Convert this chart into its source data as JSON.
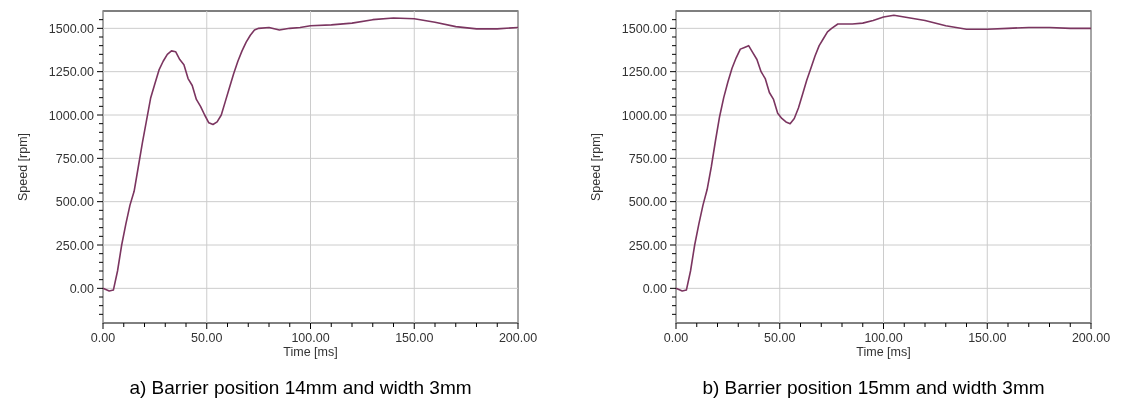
{
  "chart_data": [
    {
      "type": "line",
      "title": "a) Barrier position 14mm and width 3mm",
      "xlabel": "Time [ms]",
      "ylabel": "Speed [rpm]",
      "grid": true,
      "marker": "none",
      "line_style": "solid",
      "xlim": [
        0,
        200
      ],
      "ylim": [
        -200,
        1600
      ],
      "xticks": [
        {
          "value": 0,
          "label": "0.00"
        },
        {
          "value": 10,
          "label": null
        },
        {
          "value": 20,
          "label": null
        },
        {
          "value": 30,
          "label": null
        },
        {
          "value": 40,
          "label": null
        },
        {
          "value": 50,
          "label": "50.00"
        },
        {
          "value": 60,
          "label": null
        },
        {
          "value": 70,
          "label": null
        },
        {
          "value": 80,
          "label": null
        },
        {
          "value": 90,
          "label": null
        },
        {
          "value": 100,
          "label": "100.00"
        },
        {
          "value": 110,
          "label": null
        },
        {
          "value": 120,
          "label": null
        },
        {
          "value": 130,
          "label": null
        },
        {
          "value": 140,
          "label": null
        },
        {
          "value": 150,
          "label": "150.00"
        },
        {
          "value": 160,
          "label": null
        },
        {
          "value": 170,
          "label": null
        },
        {
          "value": 180,
          "label": null
        },
        {
          "value": 190,
          "label": null
        },
        {
          "value": 200,
          "label": "200.00"
        }
      ],
      "yticks": [
        {
          "value": -150,
          "label": null
        },
        {
          "value": -100,
          "label": null
        },
        {
          "value": -50,
          "label": null
        },
        {
          "value": 0,
          "label": "0.00"
        },
        {
          "value": 50,
          "label": null
        },
        {
          "value": 100,
          "label": null
        },
        {
          "value": 150,
          "label": null
        },
        {
          "value": 200,
          "label": null
        },
        {
          "value": 250,
          "label": "250.00"
        },
        {
          "value": 300,
          "label": null
        },
        {
          "value": 350,
          "label": null
        },
        {
          "value": 400,
          "label": null
        },
        {
          "value": 450,
          "label": null
        },
        {
          "value": 500,
          "label": "500.00"
        },
        {
          "value": 550,
          "label": null
        },
        {
          "value": 600,
          "label": null
        },
        {
          "value": 650,
          "label": null
        },
        {
          "value": 700,
          "label": null
        },
        {
          "value": 750,
          "label": "750.00"
        },
        {
          "value": 800,
          "label": null
        },
        {
          "value": 850,
          "label": null
        },
        {
          "value": 900,
          "label": null
        },
        {
          "value": 950,
          "label": null
        },
        {
          "value": 1000,
          "label": "1000.00"
        },
        {
          "value": 1050,
          "label": null
        },
        {
          "value": 1100,
          "label": null
        },
        {
          "value": 1150,
          "label": null
        },
        {
          "value": 1200,
          "label": null
        },
        {
          "value": 1250,
          "label": "1250.00"
        },
        {
          "value": 1300,
          "label": null
        },
        {
          "value": 1350,
          "label": null
        },
        {
          "value": 1400,
          "label": null
        },
        {
          "value": 1450,
          "label": null
        },
        {
          "value": 1500,
          "label": "1500.00"
        },
        {
          "value": 1550,
          "label": null
        }
      ],
      "series": [
        {
          "color": "#7b3560",
          "x": [
            0,
            3,
            5,
            7,
            9,
            11,
            13,
            15,
            17,
            19,
            21,
            23,
            25,
            27,
            29,
            31,
            33,
            35,
            37,
            39,
            41,
            43,
            45,
            47,
            49,
            51,
            53,
            55,
            57,
            59,
            61,
            63,
            65,
            67,
            69,
            71,
            73,
            75,
            80,
            85,
            90,
            95,
            100,
            110,
            120,
            130,
            140,
            150,
            160,
            170,
            180,
            190,
            200
          ],
          "values": [
            0,
            -15,
            -10,
            100,
            250,
            370,
            480,
            560,
            700,
            840,
            970,
            1100,
            1180,
            1260,
            1310,
            1350,
            1370,
            1365,
            1320,
            1290,
            1210,
            1170,
            1090,
            1050,
            1000,
            955,
            945,
            960,
            1000,
            1080,
            1160,
            1240,
            1310,
            1370,
            1420,
            1460,
            1490,
            1500,
            1505,
            1490,
            1500,
            1505,
            1515,
            1520,
            1530,
            1550,
            1560,
            1555,
            1535,
            1510,
            1497,
            1497,
            1505
          ]
        }
      ]
    },
    {
      "type": "line",
      "title": "b) Barrier position 15mm and width 3mm",
      "xlabel": "Time [ms]",
      "ylabel": "Speed [rpm]",
      "grid": true,
      "marker": "none",
      "line_style": "solid",
      "xlim": [
        0,
        200
      ],
      "ylim": [
        -200,
        1600
      ],
      "xticks": [
        {
          "value": 0,
          "label": "0.00"
        },
        {
          "value": 10,
          "label": null
        },
        {
          "value": 20,
          "label": null
        },
        {
          "value": 30,
          "label": null
        },
        {
          "value": 40,
          "label": null
        },
        {
          "value": 50,
          "label": "50.00"
        },
        {
          "value": 60,
          "label": null
        },
        {
          "value": 70,
          "label": null
        },
        {
          "value": 80,
          "label": null
        },
        {
          "value": 90,
          "label": null
        },
        {
          "value": 100,
          "label": "100.00"
        },
        {
          "value": 110,
          "label": null
        },
        {
          "value": 120,
          "label": null
        },
        {
          "value": 130,
          "label": null
        },
        {
          "value": 140,
          "label": null
        },
        {
          "value": 150,
          "label": "150.00"
        },
        {
          "value": 160,
          "label": null
        },
        {
          "value": 170,
          "label": null
        },
        {
          "value": 180,
          "label": null
        },
        {
          "value": 190,
          "label": null
        },
        {
          "value": 200,
          "label": "200.00"
        }
      ],
      "yticks": [
        {
          "value": -150,
          "label": null
        },
        {
          "value": -100,
          "label": null
        },
        {
          "value": -50,
          "label": null
        },
        {
          "value": 0,
          "label": "0.00"
        },
        {
          "value": 50,
          "label": null
        },
        {
          "value": 100,
          "label": null
        },
        {
          "value": 150,
          "label": null
        },
        {
          "value": 200,
          "label": null
        },
        {
          "value": 250,
          "label": "250.00"
        },
        {
          "value": 300,
          "label": null
        },
        {
          "value": 350,
          "label": null
        },
        {
          "value": 400,
          "label": null
        },
        {
          "value": 450,
          "label": null
        },
        {
          "value": 500,
          "label": "500.00"
        },
        {
          "value": 550,
          "label": null
        },
        {
          "value": 600,
          "label": null
        },
        {
          "value": 650,
          "label": null
        },
        {
          "value": 700,
          "label": null
        },
        {
          "value": 750,
          "label": "750.00"
        },
        {
          "value": 800,
          "label": null
        },
        {
          "value": 850,
          "label": null
        },
        {
          "value": 900,
          "label": null
        },
        {
          "value": 950,
          "label": null
        },
        {
          "value": 1000,
          "label": "1000.00"
        },
        {
          "value": 1050,
          "label": null
        },
        {
          "value": 1100,
          "label": null
        },
        {
          "value": 1150,
          "label": null
        },
        {
          "value": 1200,
          "label": null
        },
        {
          "value": 1250,
          "label": "1250.00"
        },
        {
          "value": 1300,
          "label": null
        },
        {
          "value": 1350,
          "label": null
        },
        {
          "value": 1400,
          "label": null
        },
        {
          "value": 1450,
          "label": null
        },
        {
          "value": 1500,
          "label": "1500.00"
        },
        {
          "value": 1550,
          "label": null
        }
      ],
      "series": [
        {
          "color": "#7b3560",
          "x": [
            0,
            3,
            5,
            7,
            9,
            11,
            13,
            15,
            17,
            19,
            21,
            23,
            25,
            27,
            29,
            31,
            33,
            35,
            37,
            39,
            41,
            43,
            45,
            47,
            49,
            51,
            53,
            55,
            57,
            59,
            61,
            63,
            65,
            67,
            69,
            71,
            73,
            75,
            78,
            85,
            90,
            95,
            100,
            105,
            110,
            120,
            130,
            140,
            150,
            160,
            170,
            180,
            190,
            200
          ],
          "values": [
            0,
            -15,
            -10,
            100,
            250,
            370,
            480,
            570,
            700,
            850,
            990,
            1100,
            1190,
            1270,
            1330,
            1380,
            1390,
            1400,
            1360,
            1320,
            1250,
            1210,
            1130,
            1090,
            1010,
            980,
            960,
            950,
            980,
            1040,
            1120,
            1200,
            1270,
            1340,
            1400,
            1440,
            1480,
            1500,
            1525,
            1525,
            1530,
            1545,
            1565,
            1575,
            1565,
            1545,
            1515,
            1495,
            1495,
            1500,
            1505,
            1505,
            1500,
            1500
          ]
        }
      ]
    }
  ]
}
